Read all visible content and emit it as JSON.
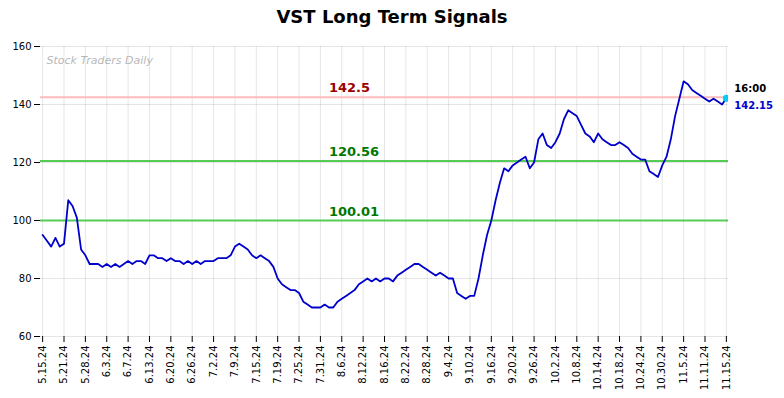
{
  "chart_data": {
    "type": "line",
    "title": "VST Long Term Signals",
    "categories": [
      "5.15.24",
      null,
      null,
      null,
      null,
      "5.21.24",
      null,
      null,
      null,
      null,
      "5.28.24",
      null,
      null,
      null,
      null,
      "6.3.24",
      null,
      null,
      null,
      null,
      "6.7.24",
      null,
      null,
      null,
      null,
      "6.13.24",
      null,
      null,
      null,
      null,
      "6.20.24",
      null,
      null,
      null,
      null,
      "6.26.24",
      null,
      null,
      null,
      null,
      "7.2.24",
      null,
      null,
      null,
      null,
      "7.9.24",
      null,
      null,
      null,
      null,
      "7.15.24",
      null,
      null,
      null,
      null,
      "7.19.24",
      null,
      null,
      null,
      null,
      "7.25.24",
      null,
      null,
      null,
      null,
      "7.31.24",
      null,
      null,
      null,
      null,
      "8.6.24",
      null,
      null,
      null,
      null,
      "8.12.24",
      null,
      null,
      null,
      null,
      "8.16.24",
      null,
      null,
      null,
      null,
      "8.22.24",
      null,
      null,
      null,
      null,
      "8.28.24",
      null,
      null,
      null,
      null,
      "9.4.24",
      null,
      null,
      null,
      null,
      "9.10.24",
      null,
      null,
      null,
      null,
      "9.16.24",
      null,
      null,
      null,
      null,
      "9.20.24",
      null,
      null,
      null,
      null,
      "9.26.24",
      null,
      null,
      null,
      null,
      "10.2.24",
      null,
      null,
      null,
      null,
      "10.8.24",
      null,
      null,
      null,
      null,
      "10.14.24",
      null,
      null,
      null,
      null,
      "10.18.24",
      null,
      null,
      null,
      null,
      "10.24.24",
      null,
      null,
      null,
      null,
      "10.30.24",
      null,
      null,
      null,
      null,
      "11.5.24",
      null,
      null,
      null,
      null,
      "11.11.24",
      null,
      null,
      null,
      null,
      "11.15.24"
    ],
    "values": [
      95,
      93,
      91,
      94,
      91,
      92,
      107,
      105,
      101,
      90,
      88,
      85,
      85,
      85,
      84,
      85,
      84,
      85,
      84,
      85,
      86,
      85,
      86,
      86,
      85,
      88,
      88,
      87,
      87,
      86,
      87,
      86,
      86,
      85,
      86,
      85,
      86,
      85,
      86,
      86,
      86,
      87,
      87,
      87,
      88,
      91,
      92,
      91,
      90,
      88,
      87,
      88,
      87,
      86,
      84,
      80,
      78,
      77,
      76,
      76,
      75,
      72,
      71,
      70,
      70,
      70,
      71,
      70,
      70,
      72,
      73,
      74,
      75,
      76,
      78,
      79,
      80,
      79,
      80,
      79,
      80,
      80,
      79,
      81,
      82,
      83,
      84,
      85,
      85,
      84,
      83,
      82,
      81,
      82,
      81,
      80,
      80,
      75,
      74,
      73,
      74,
      74,
      80,
      88,
      95,
      100,
      107,
      113,
      118,
      117,
      119,
      120,
      121,
      122,
      118,
      120,
      128,
      130,
      126,
      125,
      127,
      130,
      135,
      138,
      137,
      136,
      133,
      130,
      129,
      127,
      130,
      128,
      127,
      126,
      126,
      127,
      126,
      125,
      123,
      122,
      121,
      121,
      117,
      116,
      115,
      119,
      122,
      128,
      136,
      142,
      148,
      147,
      145,
      144,
      143,
      142,
      141,
      142,
      141,
      140,
      142.15
    ],
    "color": "#0000cc",
    "ylim": [
      60,
      160
    ],
    "yticks": [
      60,
      80,
      100,
      120,
      140,
      160
    ],
    "grid": true,
    "reference_lines": [
      {
        "value": 142.5,
        "color": "#ffbbbb",
        "label": "142.5",
        "label_color": "#990000"
      },
      {
        "value": 120.56,
        "color": "#55cc55",
        "label": "120.56",
        "label_color": "#007700"
      },
      {
        "value": 100.01,
        "color": "#55cc55",
        "label": "100.01",
        "label_color": "#007700"
      }
    ],
    "last_point": {
      "color": "#00ccff",
      "labels": [
        {
          "text": "16:00",
          "color": "#000000"
        },
        {
          "text": "142.15",
          "color": "#0000cc"
        }
      ]
    },
    "watermark": {
      "text": "Stock Traders Daily",
      "color": "#aaaaaa"
    }
  }
}
